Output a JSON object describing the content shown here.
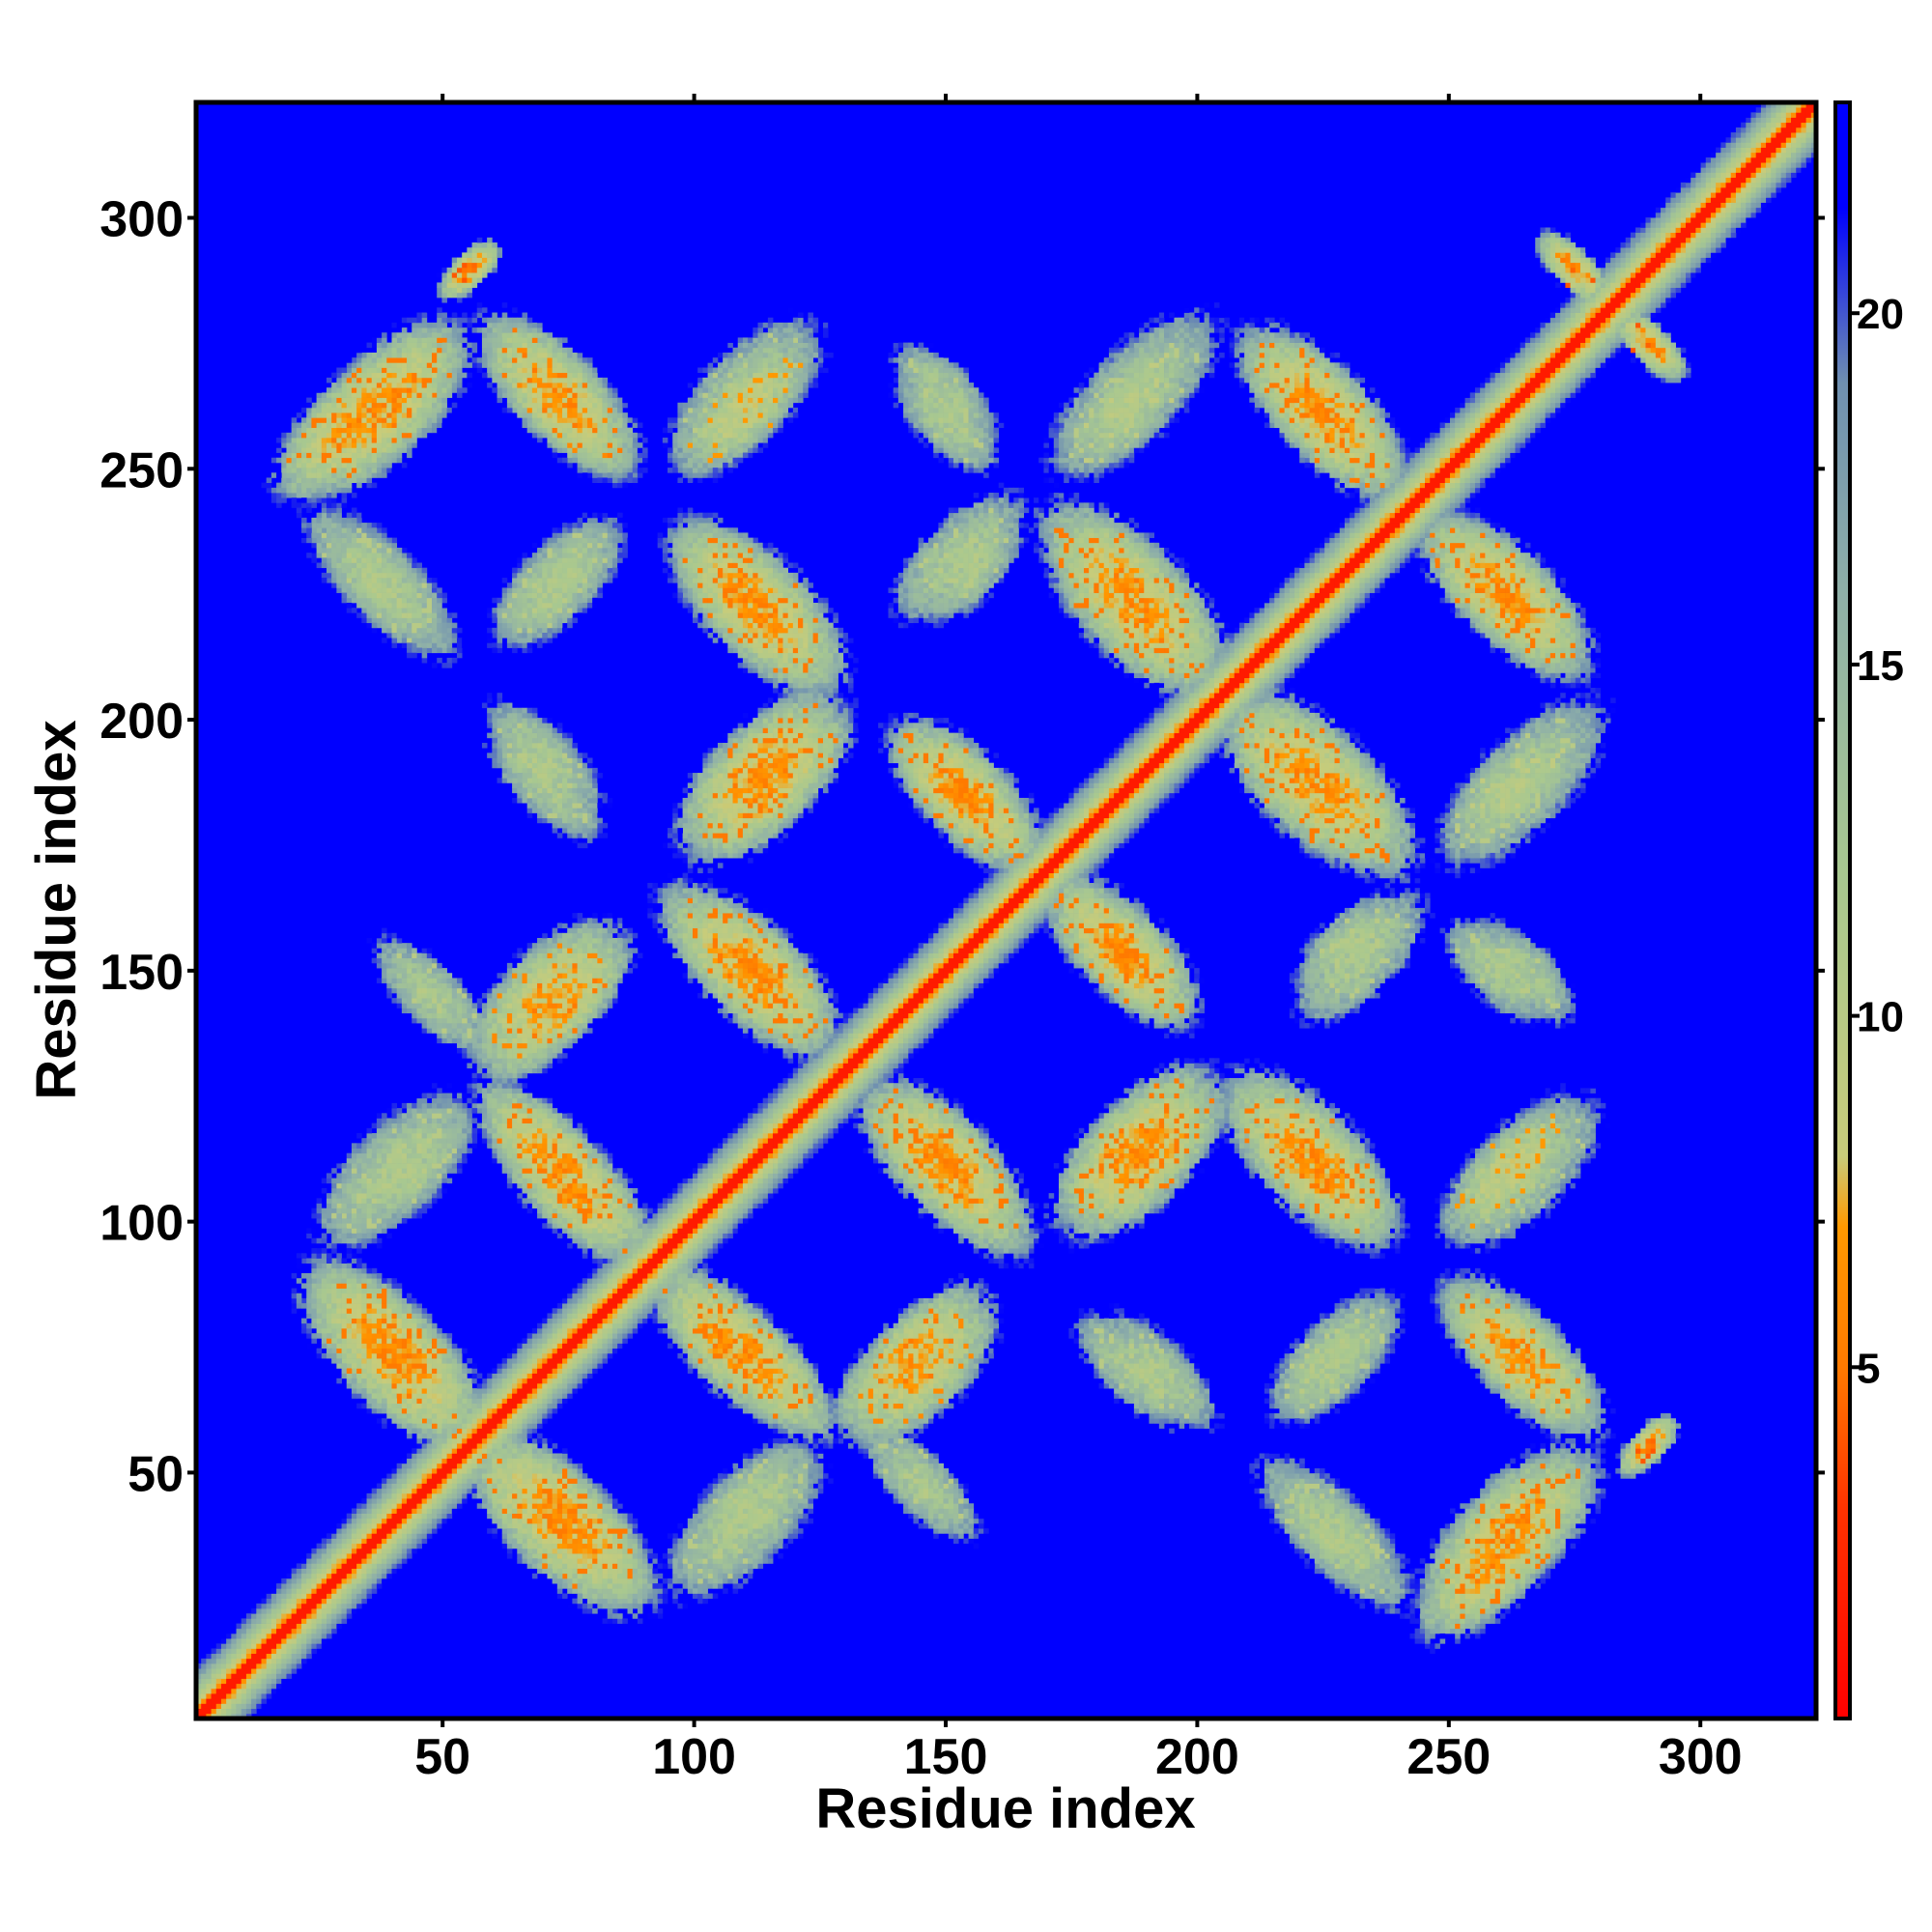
{
  "chart_data": {
    "type": "heatmap",
    "title": "",
    "xlabel": "Residue index",
    "ylabel": "Residue index",
    "xlim": [
      1,
      323
    ],
    "ylim": [
      1,
      323
    ],
    "x_ticks": [
      50,
      100,
      150,
      200,
      250,
      300
    ],
    "y_ticks": [
      50,
      100,
      150,
      200,
      250,
      300
    ],
    "x_tick_labels": [
      "50",
      "100",
      "150",
      "200",
      "250",
      "300"
    ],
    "y_tick_labels": [
      "50",
      "100",
      "150",
      "200",
      "250",
      "300"
    ],
    "grid": false,
    "symmetric": true,
    "background_value": 22,
    "colorbar": {
      "range": [
        0,
        23
      ],
      "ticks": [
        5,
        10,
        15,
        20
      ],
      "tick_labels": [
        "5",
        "10",
        "15",
        "20"
      ],
      "stops": [
        {
          "value": 0,
          "color": "#ff0000"
        },
        {
          "value": 3,
          "color": "#ff3300"
        },
        {
          "value": 5,
          "color": "#ff7a00"
        },
        {
          "value": 7,
          "color": "#ff9900"
        },
        {
          "value": 8,
          "color": "#c8cc7a"
        },
        {
          "value": 12,
          "color": "#a8c890"
        },
        {
          "value": 16,
          "color": "#8fb0a8"
        },
        {
          "value": 19,
          "color": "#6f90b0"
        },
        {
          "value": 21.5,
          "color": "#0000ff"
        },
        {
          "value": 23,
          "color": "#0000ff"
        }
      ]
    },
    "diagonal_band": {
      "core_value": 2,
      "half_width_residues": 8
    },
    "contact_regions": [
      {
        "i": [
          15,
          50
        ],
        "j": [
          245,
          275
        ],
        "orientation": "parallel",
        "min_value": 5
      },
      {
        "i": [
          58,
          90
        ],
        "j": [
          250,
          275
        ],
        "orientation": "antiparallel",
        "min_value": 6
      },
      {
        "i": [
          95,
          125
        ],
        "j": [
          250,
          275
        ],
        "orientation": "parallel",
        "min_value": 7
      },
      {
        "i": [
          140,
          160
        ],
        "j": [
          255,
          275
        ],
        "orientation": "antiparallel",
        "min_value": 10
      },
      {
        "i": [
          172,
          200
        ],
        "j": [
          250,
          275
        ],
        "orientation": "parallel",
        "min_value": 9
      },
      {
        "i": [
          210,
          240
        ],
        "j": [
          245,
          280
        ],
        "orientation": "antiparallel",
        "min_value": 5
      },
      {
        "i": [
          268,
          282
        ],
        "j": [
          283,
          298
        ],
        "orientation": "antiparallel",
        "min_value": 4
      },
      {
        "i": [
          25,
          50
        ],
        "j": [
          215,
          240
        ],
        "orientation": "antiparallel",
        "min_value": 10
      },
      {
        "i": [
          60,
          85
        ],
        "j": [
          215,
          240
        ],
        "orientation": "parallel",
        "min_value": 10
      },
      {
        "i": [
          95,
          125
        ],
        "j": [
          210,
          240
        ],
        "orientation": "antiparallel",
        "min_value": 5
      },
      {
        "i": [
          145,
          165
        ],
        "j": [
          220,
          240
        ],
        "orientation": "parallel",
        "min_value": 10
      },
      {
        "i": [
          170,
          205
        ],
        "j": [
          205,
          240
        ],
        "orientation": "antiparallel",
        "min_value": 5
      },
      {
        "i": [
          242,
          280
        ],
        "j": [
          210,
          240
        ],
        "orientation": "antiparallel",
        "min_value": 5
      },
      {
        "i": [
          60,
          80
        ],
        "j": [
          180,
          205
        ],
        "orientation": "antiparallel",
        "min_value": 10
      },
      {
        "i": [
          95,
          130
        ],
        "j": [
          175,
          205
        ],
        "orientation": "parallel",
        "min_value": 5
      },
      {
        "i": [
          138,
          170
        ],
        "j": [
          170,
          200
        ],
        "orientation": "antiparallel",
        "min_value": 5
      },
      {
        "i": [
          205,
          245
        ],
        "j": [
          170,
          205
        ],
        "orientation": "antiparallel",
        "min_value": 5
      },
      {
        "i": [
          250,
          280
        ],
        "j": [
          170,
          205
        ],
        "orientation": "parallel",
        "min_value": 10
      },
      {
        "i": [
          55,
          85
        ],
        "j": [
          130,
          160
        ],
        "orientation": "parallel",
        "min_value": 6
      },
      {
        "i": [
          90,
          130
        ],
        "j": [
          135,
          165
        ],
        "orientation": "antiparallel",
        "min_value": 5
      },
      {
        "i": [
          170,
          200
        ],
        "j": [
          140,
          165
        ],
        "orientation": "antiparallel",
        "min_value": 5
      },
      {
        "i": [
          220,
          245
        ],
        "j": [
          140,
          165
        ],
        "orientation": "parallel",
        "min_value": 10
      },
      {
        "i": [
          250,
          270
        ],
        "j": [
          140,
          160
        ],
        "orientation": "antiparallel",
        "min_value": 10
      },
      {
        "i": [
          58,
          85
        ],
        "j": [
          95,
          130
        ],
        "orientation": "antiparallel",
        "min_value": 5
      },
      {
        "i": [
          30,
          55
        ],
        "j": [
          95,
          125
        ],
        "orientation": "parallel",
        "min_value": 10
      },
      {
        "i": [
          135,
          165
        ],
        "j": [
          95,
          130
        ],
        "orientation": "antiparallel",
        "min_value": 5
      },
      {
        "i": [
          170,
          205
        ],
        "j": [
          100,
          130
        ],
        "orientation": "parallel",
        "min_value": 5
      },
      {
        "i": [
          205,
          240
        ],
        "j": [
          95,
          130
        ],
        "orientation": "antiparallel",
        "min_value": 5
      },
      {
        "i": [
          250,
          280
        ],
        "j": [
          95,
          125
        ],
        "orientation": "parallel",
        "min_value": 10
      },
      {
        "i": [
          20,
          60
        ],
        "j": [
          60,
          90
        ],
        "orientation": "antiparallel",
        "min_value": 5
      },
      {
        "i": [
          90,
          125
        ],
        "j": [
          60,
          90
        ],
        "orientation": "antiparallel",
        "min_value": 5
      },
      {
        "i": [
          125,
          160
        ],
        "j": [
          60,
          85
        ],
        "orientation": "parallel",
        "min_value": 5
      },
      {
        "i": [
          175,
          200
        ],
        "j": [
          60,
          80
        ],
        "orientation": "antiparallel",
        "min_value": 10
      },
      {
        "i": [
          215,
          240
        ],
        "j": [
          60,
          85
        ],
        "orientation": "parallel",
        "min_value": 10
      },
      {
        "i": [
          250,
          280
        ],
        "j": [
          55,
          90
        ],
        "orientation": "antiparallel",
        "min_value": 5
      },
      {
        "i": [
          55,
          90
        ],
        "j": [
          20,
          60
        ],
        "orientation": "antiparallel",
        "min_value": 5
      },
      {
        "i": [
          95,
          125
        ],
        "j": [
          25,
          55
        ],
        "orientation": "parallel",
        "min_value": 10
      },
      {
        "i": [
          135,
          155
        ],
        "j": [
          35,
          60
        ],
        "orientation": "antiparallel",
        "min_value": 10
      },
      {
        "i": [
          215,
          240
        ],
        "j": [
          20,
          55
        ],
        "orientation": "antiparallel",
        "min_value": 10
      },
      {
        "i": [
          245,
          280
        ],
        "j": [
          20,
          55
        ],
        "orientation": "parallel",
        "min_value": 5
      },
      {
        "i": [
          285,
          295
        ],
        "j": [
          48,
          62
        ],
        "orientation": "parallel",
        "min_value": 4
      }
    ]
  }
}
